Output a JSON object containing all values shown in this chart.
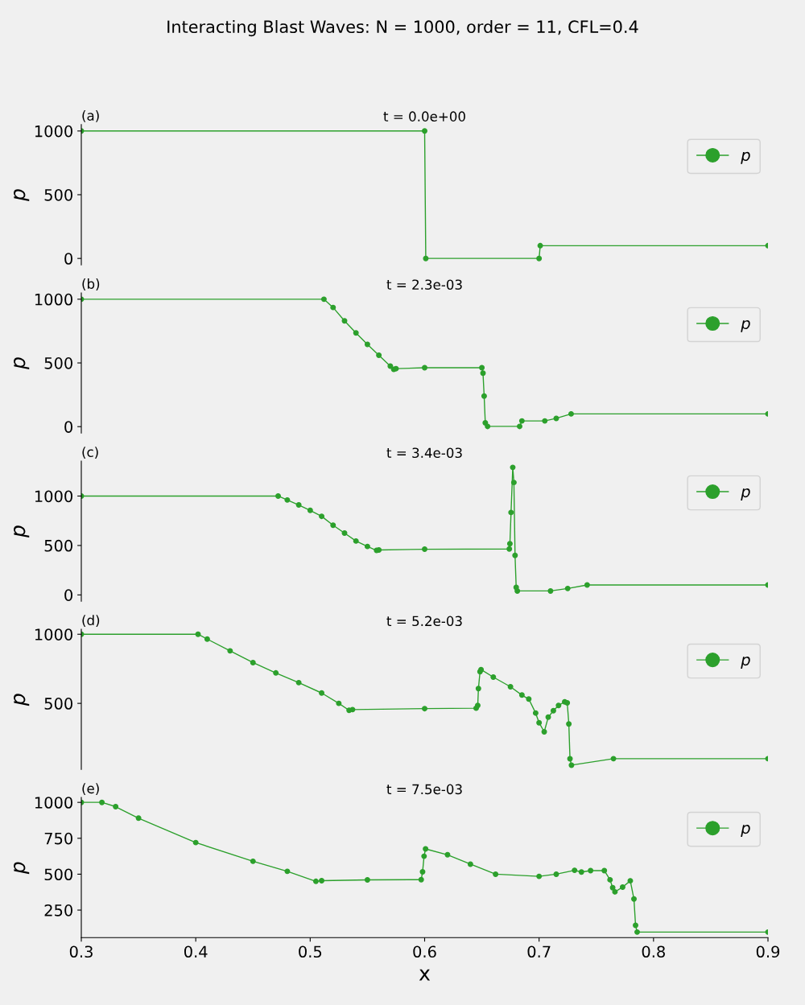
{
  "chart_data": [
    {
      "type": "line",
      "title": "Interacting Blast Waves: N = 1000, order = 11, CFL=0.4",
      "subtitle": "t = 0.0e+00",
      "annotations": [
        "(a)"
      ],
      "ylabel": "p",
      "xlim": [
        0.3,
        0.9
      ],
      "ylim": [
        -50,
        1050
      ],
      "yticks": [
        0,
        500,
        1000
      ],
      "tick_labels": "y",
      "grid": false,
      "legend": "top right",
      "marker": "circle",
      "line_style": "solid",
      "series": [
        {
          "name": "p",
          "color": "#2ca02c",
          "x": [
            0.3,
            0.6,
            0.601,
            0.7,
            0.701,
            0.9
          ],
          "values": [
            1000,
            1000,
            0,
            0,
            100,
            100
          ]
        }
      ]
    },
    {
      "type": "line",
      "subtitle": "t = 2.3e-03",
      "annotations": [
        "(b)"
      ],
      "ylabel": "p",
      "xlim": [
        0.3,
        0.9
      ],
      "ylim": [
        -50,
        1050
      ],
      "yticks": [
        0,
        500,
        1000
      ],
      "tick_labels": "y",
      "grid": false,
      "legend": "top right",
      "marker": "circle",
      "line_style": "solid",
      "series": [
        {
          "name": "p",
          "color": "#2ca02c",
          "x": [
            0.3,
            0.512,
            0.52,
            0.53,
            0.54,
            0.55,
            0.56,
            0.57,
            0.573,
            0.575,
            0.6,
            0.65,
            0.651,
            0.652,
            0.653,
            0.655,
            0.683,
            0.685,
            0.705,
            0.715,
            0.728,
            0.9
          ],
          "values": [
            1000,
            1000,
            935,
            830,
            735,
            645,
            560,
            475,
            450,
            455,
            462,
            462,
            420,
            240,
            30,
            2,
            2,
            45,
            45,
            65,
            100,
            100
          ]
        }
      ]
    },
    {
      "type": "line",
      "subtitle": "t = 3.4e-03",
      "annotations": [
        "(c)"
      ],
      "ylabel": "p",
      "xlim": [
        0.3,
        0.9
      ],
      "ylim": [
        -64,
        1354
      ],
      "yticks": [
        0,
        500,
        1000
      ],
      "tick_labels": "y",
      "grid": false,
      "legend": "top right",
      "marker": "circle",
      "line_style": "solid",
      "series": [
        {
          "name": "p",
          "color": "#2ca02c",
          "x": [
            0.3,
            0.472,
            0.48,
            0.49,
            0.5,
            0.51,
            0.52,
            0.53,
            0.54,
            0.55,
            0.558,
            0.56,
            0.6,
            0.674,
            0.6745,
            0.6755,
            0.677,
            0.678,
            0.679,
            0.68,
            0.681,
            0.71,
            0.725,
            0.742,
            0.9
          ],
          "values": [
            1000,
            1000,
            960,
            910,
            855,
            795,
            705,
            625,
            545,
            490,
            450,
            455,
            462,
            465,
            518,
            834,
            1290,
            1137,
            400,
            76,
            40,
            40,
            65,
            100,
            100
          ]
        }
      ]
    },
    {
      "type": "line",
      "subtitle": "t = 5.2e-03",
      "annotations": [
        "(d)"
      ],
      "ylabel": "p",
      "xlim": [
        0.3,
        0.9
      ],
      "ylim": [
        22,
        1036
      ],
      "yticks": [
        500,
        1000
      ],
      "tick_labels": "y",
      "grid": false,
      "legend": "top right",
      "marker": "circle",
      "line_style": "solid",
      "series": [
        {
          "name": "p",
          "color": "#2ca02c",
          "x": [
            0.3,
            0.402,
            0.41,
            0.43,
            0.45,
            0.47,
            0.49,
            0.51,
            0.525,
            0.534,
            0.537,
            0.6,
            0.645,
            0.6464,
            0.647,
            0.6484,
            0.6493,
            0.66,
            0.675,
            0.685,
            0.691,
            0.697,
            0.7,
            0.7045,
            0.708,
            0.7125,
            0.717,
            0.7224,
            0.7246,
            0.726,
            0.727,
            0.7283,
            0.765,
            0.9
          ],
          "values": [
            1000,
            1000,
            965,
            880,
            795,
            720,
            650,
            575,
            500,
            450,
            455,
            462,
            465,
            485,
            607,
            729,
            744,
            690,
            620,
            560,
            531,
            430,
            360,
            294,
            400,
            447,
            485,
            511,
            504,
            351,
            99,
            53,
            100,
            100
          ]
        }
      ]
    },
    {
      "type": "line",
      "subtitle": "t = 7.5e-03",
      "annotations": [
        "(e)"
      ],
      "ylabel": "p",
      "xlabel": "x",
      "xlim": [
        0.3,
        0.9
      ],
      "xticks": [
        0.3,
        0.4,
        0.5,
        0.6,
        0.7,
        0.8,
        0.9
      ],
      "ylim": [
        58,
        1034
      ],
      "yticks": [
        250,
        500,
        750,
        1000
      ],
      "grid": false,
      "legend": "top right",
      "marker": "circle",
      "line_style": "solid",
      "series": [
        {
          "name": "p",
          "color": "#2ca02c",
          "x": [
            0.3,
            0.318,
            0.33,
            0.35,
            0.4,
            0.45,
            0.48,
            0.505,
            0.51,
            0.55,
            0.597,
            0.5982,
            0.5995,
            0.6008,
            0.62,
            0.64,
            0.662,
            0.7,
            0.715,
            0.731,
            0.737,
            0.745,
            0.757,
            0.762,
            0.7643,
            0.7663,
            0.773,
            0.7797,
            0.7829,
            0.7843,
            0.7857,
            0.9
          ],
          "values": [
            1000,
            1000,
            970,
            890,
            720,
            590,
            520,
            450,
            455,
            460,
            462,
            516,
            625,
            676,
            635,
            570,
            500,
            485,
            500,
            527,
            515,
            525,
            525,
            461,
            406,
            377,
            410,
            454,
            327,
            144,
            97,
            97
          ]
        }
      ]
    }
  ]
}
